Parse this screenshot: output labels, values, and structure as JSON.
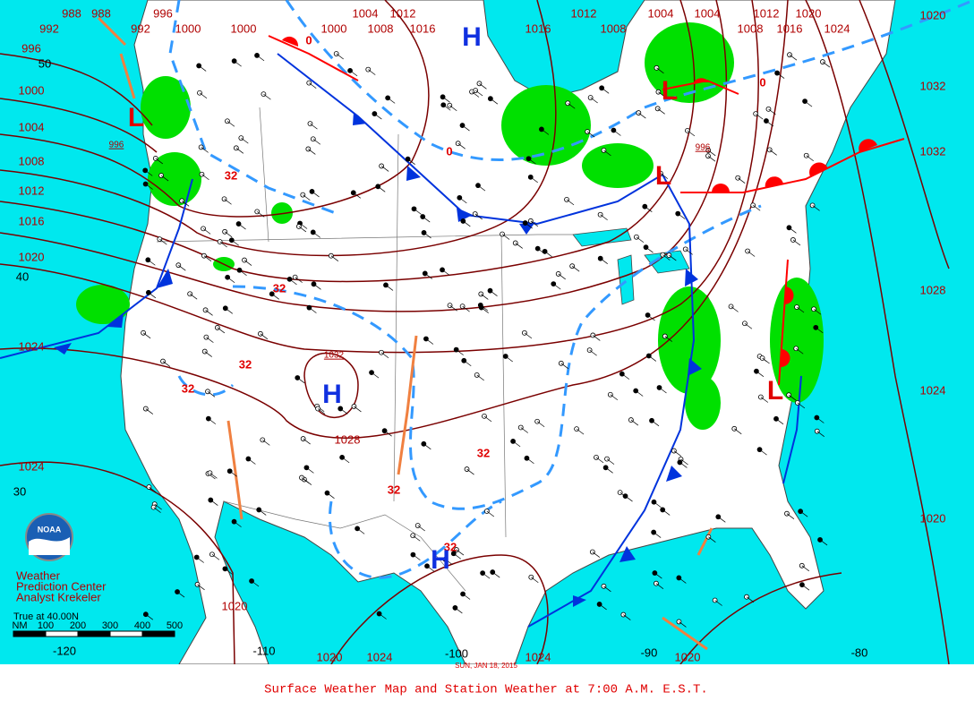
{
  "title": "Surface Weather Map and Station Weather at 7:00 A.M. E.S.T.",
  "date": "SUN, JAN 18, 2015",
  "credits": [
    "Weather",
    "Prediction Center",
    "Analyst Krekeler"
  ],
  "logo": "NOAA",
  "scale": {
    "caption": "True at 40.00N",
    "unit": "NM",
    "ticks": [
      100,
      200,
      300,
      400,
      500
    ]
  },
  "latitudes": [
    50,
    40,
    30
  ],
  "longitudes": [
    -120,
    -110,
    -100,
    -90,
    -80
  ],
  "isobars": [
    988,
    988,
    996,
    992,
    992,
    1000,
    1000,
    1000,
    1004,
    1012,
    1008,
    1016,
    1012,
    1016,
    1008,
    1004,
    1004,
    1012,
    1020,
    1008,
    1016,
    1024,
    1020,
    996,
    1000,
    1004,
    1008,
    1012,
    1016,
    1020,
    1024,
    1024,
    1032,
    1032,
    1028,
    1024,
    1020,
    1020,
    1020,
    1024,
    1024,
    1020,
    1028,
    1032,
    996,
    996
  ],
  "freezing_labels": [
    32,
    32,
    32,
    32,
    32,
    32,
    32
  ],
  "zero_labels": [
    0,
    0,
    0
  ],
  "highs": [
    "H",
    "H",
    "H"
  ],
  "lows": [
    "L",
    "L",
    "L",
    "L"
  ]
}
